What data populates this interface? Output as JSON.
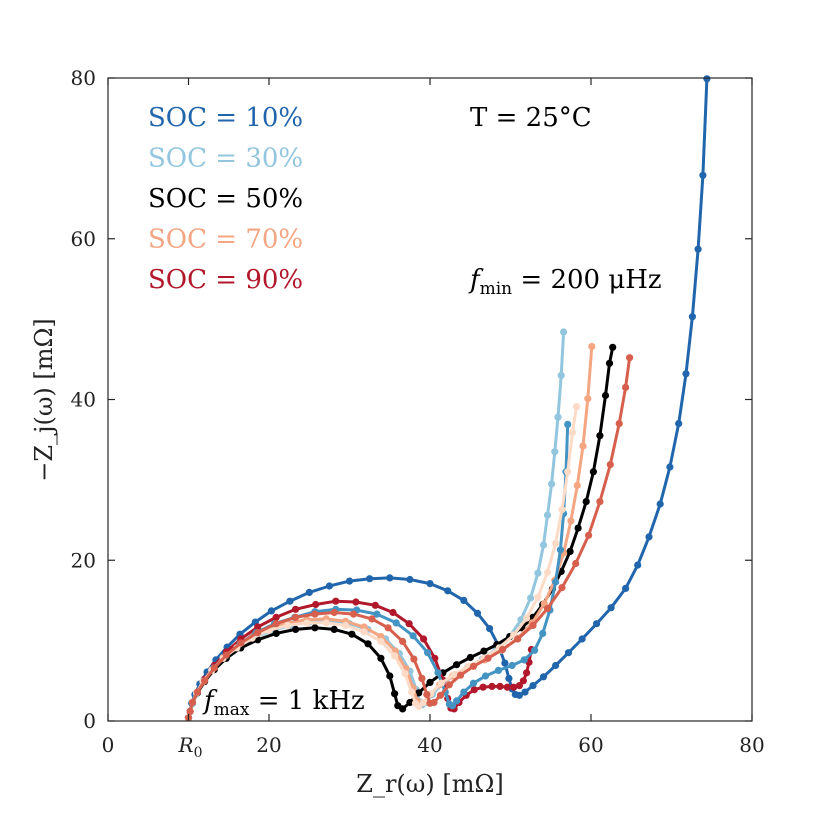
{
  "chart_data": {
    "type": "line",
    "title": "",
    "xlabel": "Z_r(ω) [mΩ]",
    "ylabel": "−Z_j(ω) [mΩ]",
    "xlim": [
      0,
      80
    ],
    "ylim": [
      0,
      80
    ],
    "xticks": [
      0,
      20,
      40,
      60,
      80
    ],
    "yticks": [
      0,
      20,
      40,
      60,
      80
    ],
    "x_extra_tick": {
      "value": 10,
      "label": "R0",
      "label_main": "R",
      "label_sub": "0"
    },
    "grid": false,
    "legend_position": "top-left",
    "annotations": {
      "temperature": "T = 25°C",
      "fmin": {
        "main": "f",
        "sub": "min",
        "text": " = 200 μHz"
      },
      "fmax": {
        "main": "f",
        "sub": "max",
        "text": " = 1 kHz"
      }
    },
    "series": [
      {
        "name": "SOC = 10%",
        "color": "#2166ac",
        "x": [
          10.0,
          10.2,
          10.4,
          10.8,
          11.4,
          12.3,
          13.4,
          14.8,
          16.4,
          18.3,
          20.3,
          22.6,
          25.0,
          27.5,
          30.0,
          32.5,
          35.0,
          37.5,
          40.0,
          42.2,
          44.2,
          45.9,
          47.4,
          48.5,
          49.3,
          49.8,
          50.2,
          50.6,
          51.1,
          51.8,
          52.8,
          54.1,
          55.6,
          57.2,
          58.9,
          60.7,
          62.5,
          64.3,
          65.8,
          67.2,
          68.6,
          69.8,
          70.9,
          71.8,
          72.6,
          73.3,
          73.9,
          74.4
        ],
        "y": [
          0.4,
          1.2,
          2.2,
          3.3,
          4.6,
          6.1,
          7.6,
          9.2,
          10.8,
          12.3,
          13.7,
          14.9,
          16.0,
          16.8,
          17.4,
          17.7,
          17.8,
          17.6,
          17.1,
          16.2,
          15.0,
          13.4,
          11.5,
          9.4,
          7.2,
          5.3,
          4.0,
          3.3,
          3.2,
          3.6,
          4.4,
          5.5,
          6.9,
          8.5,
          10.2,
          12.1,
          14.1,
          16.5,
          19.4,
          22.9,
          27.0,
          31.6,
          37.0,
          43.2,
          50.3,
          58.7,
          67.9,
          79.9
        ]
      },
      {
        "name": "SOC = 30%",
        "color": "#92c5de",
        "x": [
          10.0,
          10.2,
          10.5,
          11.0,
          11.8,
          12.9,
          14.3,
          16.0,
          18.0,
          20.2,
          22.6,
          25.0,
          27.5,
          30.0,
          32.3,
          34.5,
          36.2,
          37.5,
          38.3,
          38.7,
          39.0,
          39.5,
          40.3,
          41.5,
          43.0,
          44.7,
          46.5,
          48.2,
          49.9,
          51.3,
          52.5,
          53.4,
          54.1,
          54.6,
          55.1,
          55.5,
          55.9,
          56.3,
          56.6
        ],
        "y": [
          0.4,
          1.2,
          2.3,
          3.5,
          4.9,
          6.4,
          7.9,
          9.2,
          10.3,
          11.2,
          11.9,
          12.3,
          12.4,
          12.1,
          11.4,
          10.2,
          8.4,
          6.2,
          3.9,
          2.4,
          2.0,
          2.3,
          3.3,
          4.6,
          5.7,
          6.7,
          7.7,
          8.9,
          10.5,
          12.6,
          15.3,
          18.4,
          21.9,
          25.6,
          29.5,
          33.5,
          37.8,
          43.0,
          48.4
        ]
      },
      {
        "name": "SOC = 50%",
        "color": "#000000",
        "x": [
          10.0,
          10.2,
          10.5,
          11.1,
          12.0,
          13.2,
          14.7,
          16.5,
          18.6,
          20.9,
          23.3,
          25.7,
          28.1,
          30.3,
          32.3,
          33.9,
          35.0,
          35.6,
          36.0,
          36.6,
          37.5,
          38.6,
          40.0,
          41.6,
          43.3,
          45.0,
          46.7,
          48.3,
          49.9,
          51.4,
          52.8,
          54.0,
          55.2,
          56.3,
          57.4,
          58.4,
          59.4,
          60.3,
          61.1,
          61.8,
          62.3,
          62.7
        ],
        "y": [
          0.4,
          1.2,
          2.3,
          3.5,
          4.9,
          6.4,
          7.8,
          9.1,
          10.1,
          10.9,
          11.4,
          11.6,
          11.4,
          10.8,
          9.6,
          7.8,
          5.6,
          3.4,
          1.9,
          1.5,
          2.3,
          3.5,
          4.8,
          6.0,
          7.0,
          7.9,
          8.7,
          9.5,
          10.5,
          11.6,
          12.9,
          14.5,
          16.4,
          18.6,
          21.1,
          24.0,
          27.3,
          31.0,
          35.5,
          40.5,
          44.5,
          46.5
        ]
      },
      {
        "name": "SOC = 70%",
        "color": "#f4a582",
        "x": [
          10.0,
          10.2,
          10.5,
          11.0,
          11.8,
          12.9,
          14.3,
          16.0,
          17.9,
          20.0,
          22.3,
          24.7,
          27.1,
          29.5,
          31.8,
          33.9,
          35.7,
          37.0,
          37.9,
          38.4,
          38.7,
          39.2,
          40.0,
          41.2,
          42.8,
          44.7,
          46.8,
          48.9,
          50.9,
          52.7,
          54.2,
          55.5,
          56.6,
          57.5,
          58.3,
          59.0,
          59.6,
          60.1
        ],
        "y": [
          0.4,
          1.2,
          2.3,
          3.5,
          4.9,
          6.4,
          7.9,
          9.3,
          10.5,
          11.5,
          12.2,
          12.6,
          12.7,
          12.4,
          11.7,
          10.5,
          8.7,
          6.5,
          4.1,
          2.5,
          2.0,
          2.3,
          3.3,
          4.5,
          5.6,
          6.6,
          7.6,
          8.8,
          10.3,
          12.2,
          14.6,
          17.5,
          20.9,
          24.9,
          29.3,
          34.2,
          40.1,
          46.6
        ]
      },
      {
        "name": "SOC = 90%",
        "color": "#b2182b",
        "x": [
          10.0,
          10.2,
          10.5,
          11.1,
          12.0,
          13.2,
          14.7,
          16.5,
          18.6,
          20.9,
          23.3,
          25.8,
          28.3,
          30.8,
          33.2,
          35.4,
          37.4,
          39.2,
          40.6,
          41.6,
          42.2,
          42.6,
          43.0,
          43.6,
          44.5,
          45.5,
          46.6,
          47.7,
          48.7,
          49.6,
          50.4,
          51.1,
          51.6,
          52.0,
          52.3,
          52.6
        ],
        "y": [
          0.4,
          1.2,
          2.3,
          3.6,
          5.2,
          6.9,
          8.6,
          10.2,
          11.7,
          12.9,
          13.9,
          14.5,
          14.9,
          14.8,
          14.4,
          13.5,
          12.1,
          10.2,
          7.8,
          5.1,
          2.8,
          1.6,
          1.5,
          2.3,
          3.2,
          3.9,
          4.2,
          4.3,
          4.3,
          4.2,
          4.2,
          4.4,
          5.0,
          6.0,
          7.3,
          8.9
        ]
      },
      {
        "name": "",
        "color": "#4393c3",
        "x": [
          10.0,
          10.2,
          10.5,
          11.0,
          11.9,
          13.1,
          14.6,
          16.4,
          18.4,
          20.7,
          23.2,
          25.7,
          28.3,
          30.9,
          33.4,
          35.8,
          37.9,
          39.7,
          41.0,
          41.9,
          42.4,
          42.8,
          43.3,
          44.2,
          45.4,
          46.9,
          48.5,
          50.2,
          51.7,
          53.0,
          54.0,
          54.9,
          55.6,
          56.2,
          56.6,
          56.9,
          57.1
        ],
        "y": [
          0.4,
          1.2,
          2.2,
          3.5,
          5.0,
          6.6,
          8.1,
          9.6,
          11.0,
          12.1,
          12.9,
          13.6,
          13.9,
          13.8,
          13.3,
          12.2,
          10.6,
          8.5,
          6.0,
          3.6,
          2.1,
          1.9,
          2.5,
          3.6,
          4.7,
          5.6,
          6.3,
          6.9,
          7.6,
          8.8,
          10.9,
          13.8,
          17.3,
          21.3,
          25.8,
          31.0,
          36.9
        ]
      },
      {
        "name": "",
        "color": "#fddbc7",
        "x": [
          10.0,
          10.2,
          10.5,
          11.0,
          11.8,
          12.9,
          14.3,
          16.0,
          17.9,
          20.0,
          22.3,
          24.7,
          27.1,
          29.5,
          31.8,
          33.9,
          35.6,
          36.9,
          37.7,
          38.2,
          38.6,
          39.2,
          40.1,
          41.4,
          43.0,
          44.8,
          46.7,
          48.6,
          50.4,
          52.0,
          53.4,
          54.6,
          55.6,
          56.4,
          57.1,
          57.7,
          58.2
        ],
        "y": [
          0.4,
          1.2,
          2.3,
          3.5,
          4.9,
          6.3,
          7.8,
          9.1,
          10.3,
          11.3,
          11.9,
          12.2,
          12.2,
          11.9,
          11.1,
          9.9,
          8.1,
          5.9,
          3.6,
          2.2,
          1.8,
          2.3,
          3.4,
          4.7,
          5.8,
          6.8,
          7.8,
          9.1,
          10.7,
          12.8,
          15.4,
          18.5,
          22.1,
          26.3,
          31.0,
          35.9,
          39.1
        ]
      },
      {
        "name": "",
        "color": "#d6604d",
        "x": [
          10.0,
          10.2,
          10.5,
          11.1,
          12.0,
          13.2,
          14.7,
          16.5,
          18.6,
          20.9,
          23.3,
          25.7,
          28.1,
          30.5,
          32.8,
          34.8,
          36.6,
          38.0,
          39.0,
          39.6,
          40.0,
          40.5,
          41.3,
          42.4,
          43.8,
          45.4,
          47.2,
          49.0,
          50.9,
          52.8,
          54.6,
          56.4,
          58.1,
          59.7,
          61.1,
          62.4,
          63.5,
          64.3,
          64.8
        ],
        "y": [
          0.4,
          1.2,
          2.3,
          3.6,
          5.0,
          6.6,
          8.2,
          9.7,
          11.0,
          12.1,
          12.9,
          13.3,
          13.5,
          13.3,
          12.7,
          11.6,
          9.9,
          7.7,
          5.3,
          3.3,
          2.2,
          2.3,
          3.2,
          4.5,
          5.7,
          6.8,
          7.8,
          8.9,
          10.2,
          11.9,
          14.0,
          16.6,
          19.6,
          23.1,
          27.3,
          31.9,
          37.0,
          41.5,
          45.2
        ]
      }
    ]
  }
}
